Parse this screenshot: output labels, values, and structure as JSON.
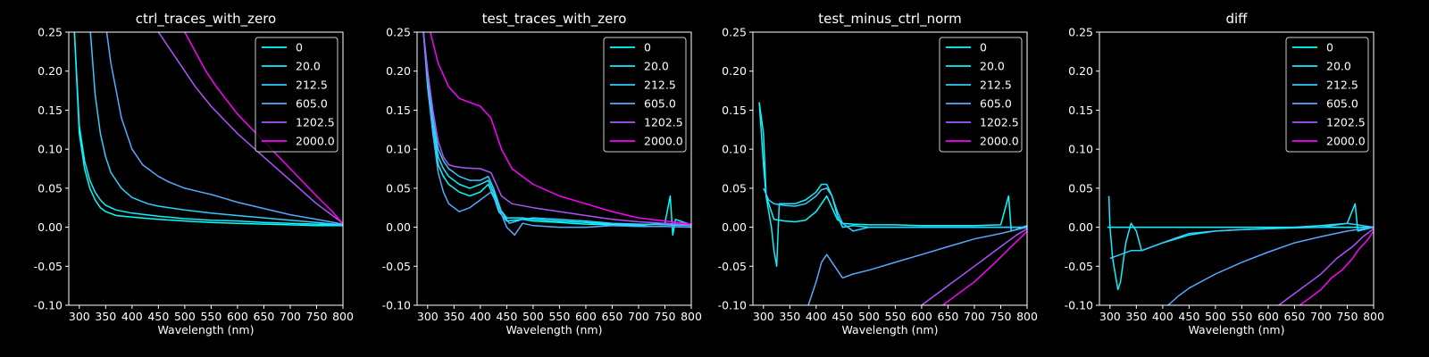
{
  "figure": {
    "background": "#000000",
    "foreground": "#ffffff"
  },
  "chart_data": [
    {
      "type": "line",
      "title": "ctrl_traces_with_zero",
      "xlabel": "Wavelength (nm)",
      "ylabel": "",
      "xlim": [
        280,
        800
      ],
      "ylim": [
        -0.1,
        0.25
      ],
      "xticks": [
        300,
        350,
        400,
        450,
        500,
        550,
        600,
        650,
        700,
        750,
        800
      ],
      "yticks": [
        -0.1,
        -0.05,
        0.0,
        0.05,
        0.1,
        0.15,
        0.2,
        0.25
      ],
      "grid": false,
      "legend_position": "top-right",
      "series": [
        {
          "name": "0",
          "color": "#00ffff",
          "x": [
            290,
            300,
            310,
            320,
            330,
            340,
            350,
            370,
            400,
            450,
            500,
            550,
            600,
            650,
            700,
            750,
            800
          ],
          "y": [
            0.26,
            0.12,
            0.075,
            0.05,
            0.035,
            0.025,
            0.02,
            0.015,
            0.013,
            0.01,
            0.008,
            0.006,
            0.005,
            0.004,
            0.003,
            0.002,
            0.002
          ]
        },
        {
          "name": "20.0",
          "color": "#10efff",
          "x": [
            290,
            300,
            310,
            320,
            330,
            340,
            350,
            370,
            400,
            450,
            500,
            550,
            600,
            650,
            700,
            750,
            800
          ],
          "y": [
            0.26,
            0.13,
            0.085,
            0.06,
            0.045,
            0.035,
            0.028,
            0.022,
            0.018,
            0.014,
            0.011,
            0.009,
            0.008,
            0.006,
            0.005,
            0.004,
            0.003
          ]
        },
        {
          "name": "212.5",
          "color": "#33ccff",
          "x": [
            320,
            330,
            340,
            350,
            360,
            380,
            400,
            430,
            450,
            500,
            550,
            600,
            650,
            700,
            750,
            800
          ],
          "y": [
            0.26,
            0.17,
            0.12,
            0.09,
            0.07,
            0.05,
            0.038,
            0.03,
            0.027,
            0.022,
            0.018,
            0.015,
            0.012,
            0.009,
            0.006,
            0.003
          ]
        },
        {
          "name": "605.0",
          "color": "#55aaff",
          "x": [
            350,
            360,
            380,
            400,
            420,
            450,
            470,
            500,
            530,
            550,
            600,
            650,
            700,
            750,
            800
          ],
          "y": [
            0.26,
            0.21,
            0.14,
            0.1,
            0.08,
            0.065,
            0.058,
            0.05,
            0.045,
            0.042,
            0.032,
            0.024,
            0.016,
            0.01,
            0.004
          ]
        },
        {
          "name": "1202.5",
          "color": "#aa55ff",
          "x": [
            450,
            480,
            500,
            520,
            550,
            600,
            650,
            700,
            750,
            800
          ],
          "y": [
            0.25,
            0.22,
            0.2,
            0.18,
            0.155,
            0.12,
            0.09,
            0.06,
            0.03,
            0.005
          ]
        },
        {
          "name": "2000.0",
          "color": "#ff00ff",
          "x": [
            500,
            520,
            540,
            560,
            600,
            650,
            700,
            750,
            780,
            800
          ],
          "y": [
            0.25,
            0.225,
            0.2,
            0.18,
            0.145,
            0.11,
            0.075,
            0.04,
            0.02,
            0.004
          ]
        }
      ]
    },
    {
      "type": "line",
      "title": "test_traces_with_zero",
      "xlabel": "Wavelength (nm)",
      "ylabel": "",
      "xlim": [
        280,
        800
      ],
      "ylim": [
        -0.1,
        0.25
      ],
      "xticks": [
        300,
        350,
        400,
        450,
        500,
        550,
        600,
        650,
        700,
        750,
        800
      ],
      "yticks": [
        -0.1,
        -0.05,
        0.0,
        0.05,
        0.1,
        0.15,
        0.2,
        0.25
      ],
      "grid": false,
      "legend_position": "top-right",
      "series": [
        {
          "name": "0",
          "color": "#00ffff",
          "x": [
            292,
            300,
            310,
            320,
            330,
            340,
            360,
            380,
            400,
            415,
            425,
            435,
            450,
            480,
            500,
            550,
            600,
            650,
            700,
            750,
            760,
            765,
            770,
            800
          ],
          "y": [
            0.25,
            0.18,
            0.12,
            0.08,
            0.065,
            0.055,
            0.045,
            0.04,
            0.045,
            0.055,
            0.04,
            0.02,
            0.008,
            0.01,
            0.008,
            0.006,
            0.004,
            0.003,
            0.002,
            0.005,
            0.04,
            -0.01,
            0.01,
            0.003
          ]
        },
        {
          "name": "20.0",
          "color": "#10efff",
          "x": [
            292,
            300,
            310,
            320,
            330,
            340,
            360,
            380,
            400,
            415,
            425,
            435,
            450,
            480,
            500,
            550,
            600,
            650,
            700,
            750,
            800
          ],
          "y": [
            0.25,
            0.19,
            0.13,
            0.09,
            0.075,
            0.065,
            0.055,
            0.05,
            0.055,
            0.06,
            0.045,
            0.025,
            0.012,
            0.012,
            0.01,
            0.008,
            0.006,
            0.004,
            0.003,
            0.005,
            0.002
          ]
        },
        {
          "name": "212.5",
          "color": "#33ccff",
          "x": [
            292,
            300,
            310,
            320,
            330,
            340,
            360,
            380,
            400,
            415,
            425,
            440,
            455,
            480,
            500,
            550,
            600,
            650,
            700,
            750,
            800
          ],
          "y": [
            0.25,
            0.2,
            0.14,
            0.1,
            0.085,
            0.075,
            0.065,
            0.06,
            0.06,
            0.065,
            0.05,
            0.02,
            0.005,
            0.01,
            0.012,
            0.01,
            0.008,
            0.005,
            0.004,
            0.003,
            0.002
          ]
        },
        {
          "name": "605.0",
          "color": "#55aaff",
          "x": [
            292,
            300,
            310,
            320,
            330,
            340,
            360,
            380,
            400,
            420,
            435,
            450,
            465,
            480,
            500,
            550,
            600,
            650,
            700,
            750,
            800
          ],
          "y": [
            0.25,
            0.19,
            0.12,
            0.07,
            0.045,
            0.03,
            0.02,
            0.025,
            0.035,
            0.045,
            0.025,
            0.0,
            -0.01,
            0.005,
            0.002,
            0.0,
            0.0,
            0.002,
            0.001,
            0.001,
            0.0
          ]
        },
        {
          "name": "1202.5",
          "color": "#aa55ff",
          "x": [
            292,
            300,
            310,
            320,
            330,
            340,
            350,
            370,
            400,
            420,
            440,
            460,
            500,
            550,
            600,
            650,
            700,
            750,
            800
          ],
          "y": [
            0.25,
            0.2,
            0.15,
            0.11,
            0.09,
            0.08,
            0.078,
            0.076,
            0.075,
            0.07,
            0.04,
            0.03,
            0.025,
            0.02,
            0.015,
            0.01,
            0.007,
            0.005,
            0.003
          ]
        },
        {
          "name": "2000.0",
          "color": "#ff00ff",
          "x": [
            305,
            320,
            340,
            360,
            380,
            400,
            420,
            440,
            460,
            500,
            550,
            600,
            650,
            700,
            750,
            800
          ],
          "y": [
            0.25,
            0.21,
            0.18,
            0.165,
            0.16,
            0.155,
            0.14,
            0.1,
            0.075,
            0.055,
            0.04,
            0.03,
            0.02,
            0.012,
            0.008,
            0.004
          ]
        }
      ]
    },
    {
      "type": "line",
      "title": "test_minus_ctrl_norm",
      "xlabel": "Wavelength (nm)",
      "ylabel": "",
      "xlim": [
        280,
        800
      ],
      "ylim": [
        -0.1,
        0.25
      ],
      "xticks": [
        300,
        350,
        400,
        450,
        500,
        550,
        600,
        650,
        700,
        750,
        800
      ],
      "yticks": [
        -0.1,
        -0.05,
        0.0,
        0.05,
        0.1,
        0.15,
        0.2,
        0.25
      ],
      "grid": false,
      "legend_position": "top-right",
      "series": [
        {
          "name": "0",
          "color": "#00ffff",
          "x": [
            292,
            300,
            305,
            310,
            320,
            340,
            360,
            380,
            400,
            410,
            420,
            430,
            440,
            450,
            470,
            500,
            550,
            600,
            650,
            700,
            750,
            765,
            770,
            800
          ],
          "y": [
            0.16,
            0.12,
            0.04,
            0.03,
            0.01,
            0.008,
            0.007,
            0.009,
            0.02,
            0.03,
            0.04,
            0.025,
            0.01,
            0.005,
            0.004,
            0.003,
            0.003,
            0.002,
            0.002,
            0.002,
            0.003,
            0.04,
            -0.005,
            0.002
          ]
        },
        {
          "name": "20.0",
          "color": "#10efff",
          "x": [
            292,
            300,
            305,
            310,
            315,
            320,
            325,
            330,
            340,
            360,
            380,
            400,
            410,
            420,
            430,
            440,
            450,
            470,
            500,
            550,
            600,
            650,
            700,
            750,
            800
          ],
          "y": [
            0.16,
            0.08,
            0.04,
            0.02,
            0.0,
            -0.03,
            -0.05,
            0.03,
            0.03,
            0.03,
            0.035,
            0.045,
            0.055,
            0.055,
            0.04,
            0.015,
            0.0,
            0.002,
            0.0,
            0.0,
            0.0,
            0.0,
            0.0,
            0.0,
            0.0
          ]
        },
        {
          "name": "212.5",
          "color": "#33ccff",
          "x": [
            300,
            310,
            320,
            340,
            360,
            380,
            400,
            410,
            420,
            430,
            440,
            450,
            470,
            500,
            550,
            600,
            650,
            700,
            750,
            800
          ],
          "y": [
            0.05,
            0.035,
            0.03,
            0.028,
            0.027,
            0.03,
            0.04,
            0.048,
            0.05,
            0.04,
            0.02,
            0.005,
            -0.005,
            0.0,
            0.0,
            0.0,
            0.0,
            0.0,
            0.0,
            0.0
          ]
        },
        {
          "name": "605.0",
          "color": "#55aaff",
          "x": [
            385,
            400,
            410,
            420,
            430,
            450,
            470,
            500,
            550,
            600,
            650,
            700,
            750,
            800
          ],
          "y": [
            -0.1,
            -0.07,
            -0.045,
            -0.035,
            -0.045,
            -0.065,
            -0.06,
            -0.055,
            -0.045,
            -0.035,
            -0.025,
            -0.015,
            -0.008,
            0.0
          ]
        },
        {
          "name": "1202.5",
          "color": "#aa55ff",
          "x": [
            600,
            650,
            700,
            750,
            780,
            800
          ],
          "y": [
            -0.1,
            -0.075,
            -0.05,
            -0.025,
            -0.01,
            -0.002
          ]
        },
        {
          "name": "2000.0",
          "color": "#ff00ff",
          "x": [
            640,
            660,
            700,
            740,
            770,
            790,
            800
          ],
          "y": [
            -0.1,
            -0.09,
            -0.07,
            -0.045,
            -0.025,
            -0.012,
            -0.005
          ]
        }
      ]
    },
    {
      "type": "line",
      "title": "diff",
      "xlabel": "Wavelength (nm)",
      "ylabel": "",
      "xlim": [
        280,
        800
      ],
      "ylim": [
        -0.1,
        0.25
      ],
      "xticks": [
        300,
        350,
        400,
        450,
        500,
        550,
        600,
        650,
        700,
        750,
        800
      ],
      "yticks": [
        -0.1,
        -0.05,
        0.0,
        0.05,
        0.1,
        0.15,
        0.2,
        0.25
      ],
      "grid": false,
      "legend_position": "top-right",
      "series": [
        {
          "name": "0",
          "color": "#00ffff",
          "x": [
            295,
            800
          ],
          "y": [
            0.0,
            0.0
          ]
        },
        {
          "name": "20.0",
          "color": "#10efff",
          "x": [
            298,
            300,
            305,
            310,
            315,
            320,
            330,
            340,
            350,
            360,
            380,
            400,
            450,
            500,
            550,
            600,
            650,
            700,
            750,
            765,
            770,
            800
          ],
          "y": [
            0.04,
            0.0,
            -0.04,
            -0.06,
            -0.08,
            -0.07,
            -0.02,
            0.005,
            -0.005,
            -0.03,
            -0.025,
            -0.02,
            -0.01,
            -0.005,
            -0.003,
            -0.002,
            0.0,
            0.002,
            0.005,
            0.03,
            -0.005,
            0.0
          ]
        },
        {
          "name": "212.5",
          "color": "#33ccff",
          "x": [
            300,
            320,
            340,
            360,
            380,
            400,
            420,
            450,
            500,
            550,
            600,
            650,
            700,
            750,
            800
          ],
          "y": [
            -0.04,
            -0.035,
            -0.03,
            -0.03,
            -0.025,
            -0.02,
            -0.015,
            -0.008,
            -0.005,
            -0.003,
            -0.002,
            -0.001,
            0.0,
            0.005,
            0.0
          ]
        },
        {
          "name": "605.0",
          "color": "#55aaff",
          "x": [
            410,
            430,
            450,
            500,
            550,
            600,
            650,
            700,
            750,
            800
          ],
          "y": [
            -0.1,
            -0.088,
            -0.078,
            -0.06,
            -0.045,
            -0.032,
            -0.02,
            -0.012,
            -0.005,
            0.0
          ]
        },
        {
          "name": "1202.5",
          "color": "#aa55ff",
          "x": [
            620,
            650,
            680,
            700,
            730,
            760,
            780,
            800
          ],
          "y": [
            -0.1,
            -0.085,
            -0.07,
            -0.06,
            -0.04,
            -0.025,
            -0.012,
            -0.002
          ]
        },
        {
          "name": "2000.0",
          "color": "#ff00ff",
          "x": [
            660,
            680,
            700,
            720,
            740,
            760,
            770,
            790,
            800
          ],
          "y": [
            -0.1,
            -0.09,
            -0.08,
            -0.065,
            -0.055,
            -0.04,
            -0.03,
            -0.015,
            -0.005
          ]
        }
      ]
    }
  ]
}
